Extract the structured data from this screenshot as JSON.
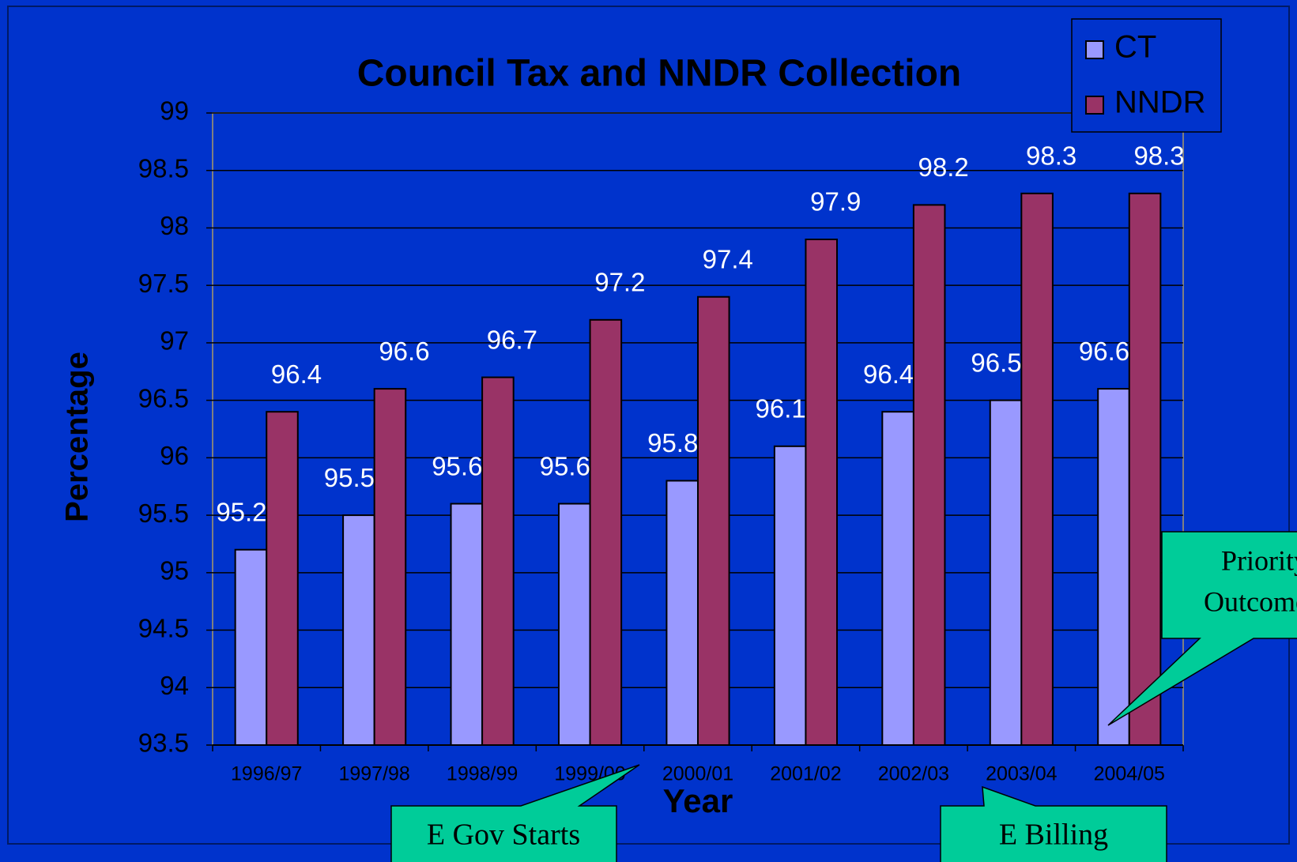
{
  "chart_data": {
    "type": "bar",
    "title": "Council Tax and NNDR Collection",
    "x_label": "Year",
    "y_label": "Percentage",
    "categories": [
      "1996/97",
      "1997/98",
      "1998/99",
      "1999/00",
      "2000/01",
      "2001/02",
      "2002/03",
      "2003/04",
      "2004/05"
    ],
    "series": [
      {
        "name": "CT",
        "color": "#9999ff",
        "values": [
          95.2,
          95.5,
          95.6,
          95.6,
          95.8,
          96.1,
          96.4,
          96.5,
          96.6
        ]
      },
      {
        "name": "NNDR",
        "color": "#993366",
        "values": [
          96.4,
          96.6,
          96.7,
          97.2,
          97.4,
          97.9,
          98.2,
          98.3,
          98.3
        ]
      }
    ],
    "ylim": [
      93.5,
      99
    ],
    "yticks": [
      93.5,
      94,
      94.5,
      95,
      95.5,
      96,
      96.5,
      97,
      97.5,
      98,
      98.5,
      99
    ],
    "grid": true,
    "legend": "top-right",
    "annotations": [
      "E Gov Starts",
      "E Billing",
      "Priority",
      "Outcomes"
    ]
  }
}
